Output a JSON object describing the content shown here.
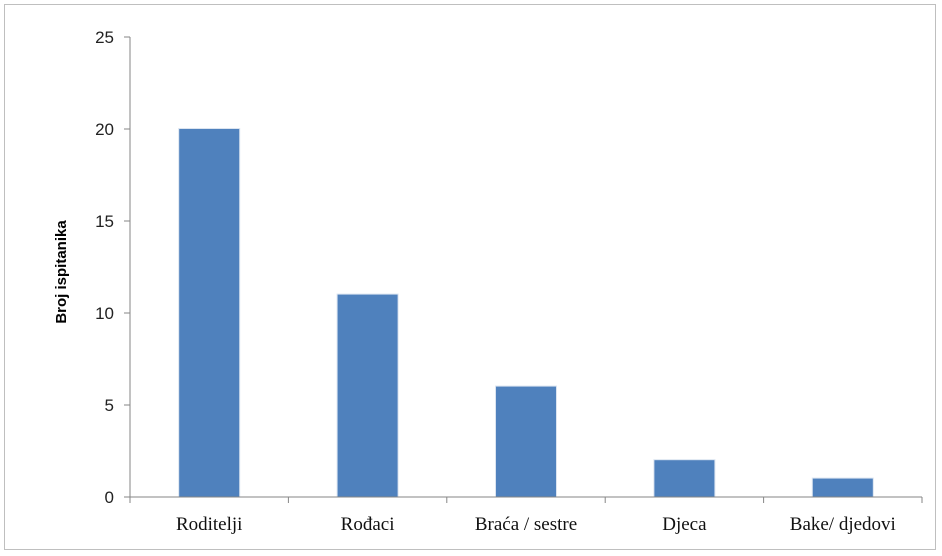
{
  "chart_data": {
    "type": "bar",
    "title": "",
    "xlabel": "",
    "ylabel": "Broj ispitanika",
    "categories": [
      "Roditelji",
      "Rođaci",
      "Braća / sestre",
      "Djeca",
      "Bake/ djedovi"
    ],
    "values": [
      20,
      11,
      6,
      2,
      1
    ],
    "ylim": [
      0,
      25
    ],
    "yticks": [
      0,
      5,
      10,
      15,
      20,
      25
    ],
    "grid": false,
    "legend": "none",
    "bar_color": "#4f81bd",
    "axis_color": "#868686"
  }
}
